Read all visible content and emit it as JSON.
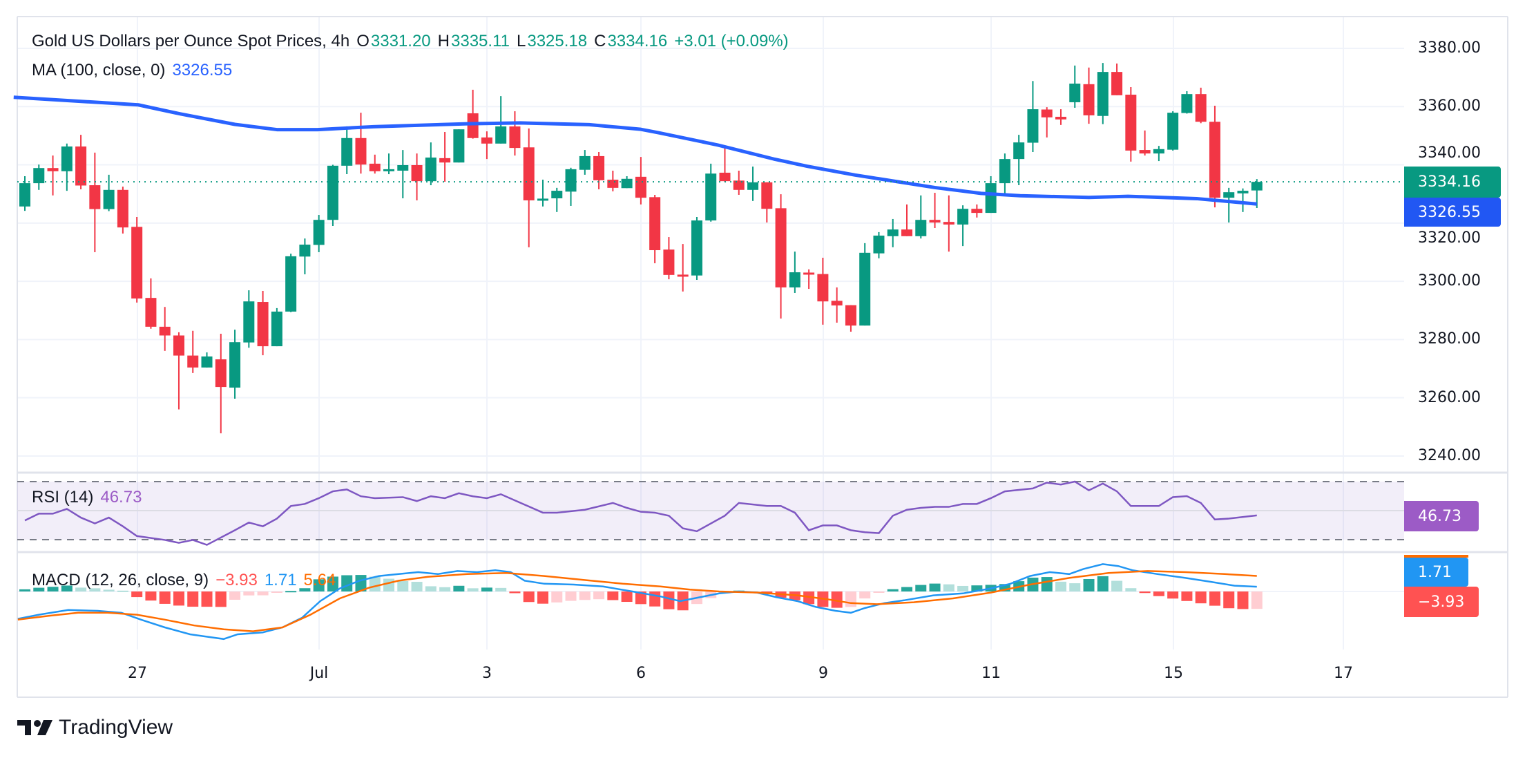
{
  "legend": {
    "title": "Gold US Dollars per Ounce Spot Prices, 4h",
    "o_label": "O",
    "o_value": "3331.20",
    "h_label": "H",
    "h_value": "3335.11",
    "l_label": "L",
    "l_value": "3325.18",
    "c_label": "C",
    "c_value": "3334.16",
    "change": "+3.01 (+0.09%)",
    "ma_label": "MA (100, close, 0)",
    "ma_value": "3326.55",
    "rsi_label": "RSI (14)",
    "rsi_value": "46.73",
    "macd_label": "MACD (12, 26, close, 9)",
    "macd_hist": "−3.93",
    "macd_value": "1.71",
    "macd_signal": "5.64"
  },
  "price_axis": {
    "ticks": [
      "3380.00",
      "3360.00",
      "3340.00",
      "3320.00",
      "3300.00",
      "3280.00",
      "3260.00",
      "3240.00"
    ],
    "last_price_label": "3334.16",
    "ma_price_label": "3326.55",
    "rsi_label": "46.73",
    "macd_label": "1.71",
    "hist_label": "−3.93"
  },
  "time_axis": [
    "27",
    "Jul",
    "3",
    "6",
    "9",
    "11",
    "15",
    "17"
  ],
  "branding": {
    "name": "TradingView"
  },
  "colors": {
    "up": "#089981",
    "down": "#F23645",
    "ma": "#2962FF",
    "rsi": "#7E57C2",
    "macd": "#2196F3",
    "signal": "#FF6D00"
  },
  "chart_data": {
    "type": "candlestick",
    "title": "Gold US Dollars per Ounce Spot Prices, 4h",
    "ylim": [
      3240,
      3380
    ],
    "y_ticks": [
      3380,
      3360,
      3340,
      3320,
      3300,
      3280,
      3260,
      3240
    ],
    "grid": true,
    "last_price": 3334.16,
    "ohlc": [
      [
        3325.7,
        3336.1,
        3324.2,
        3333.7
      ],
      [
        3333.7,
        3340.1,
        3331.4,
        3338.9
      ],
      [
        3338.9,
        3343.2,
        3329.5,
        3337.8
      ],
      [
        3337.8,
        3347.3,
        3331.1,
        3346.3
      ],
      [
        3346.3,
        3350.3,
        3331.6,
        3332.9
      ],
      [
        3333.0,
        3344.2,
        3310.0,
        3324.8
      ],
      [
        3324.8,
        3336.6,
        3324.1,
        3331.4
      ],
      [
        3331.4,
        3332.5,
        3316.4,
        3318.5
      ],
      [
        3318.7,
        3322.1,
        3292.7,
        3294.1
      ],
      [
        3294.3,
        3301.0,
        3283.7,
        3284.4
      ],
      [
        3284.4,
        3291.2,
        3276.1,
        3281.4
      ],
      [
        3281.4,
        3282.5,
        3256.0,
        3274.5
      ],
      [
        3274.5,
        3283.0,
        3268.5,
        3270.4
      ],
      [
        3270.4,
        3275.6,
        3270.4,
        3274.2
      ],
      [
        3273.2,
        3282.0,
        3247.8,
        3263.7
      ],
      [
        3263.5,
        3283.4,
        3259.7,
        3279.1
      ],
      [
        3279.0,
        3296.9,
        3277.2,
        3293.1
      ],
      [
        3292.9,
        3296.7,
        3274.6,
        3277.7
      ],
      [
        3277.7,
        3290.8,
        3277.7,
        3289.6
      ],
      [
        3289.6,
        3309.5,
        3289.4,
        3308.6
      ],
      [
        3308.5,
        3314.7,
        3302.4,
        3312.6
      ],
      [
        3312.5,
        3322.8,
        3310.0,
        3321.1
      ],
      [
        3321.1,
        3340.0,
        3319.0,
        3339.7
      ],
      [
        3339.7,
        3353.2,
        3336.8,
        3349.2
      ],
      [
        3349.2,
        3357.9,
        3337.0,
        3340.1
      ],
      [
        3340.4,
        3343.5,
        3337.0,
        3337.8
      ],
      [
        3338.0,
        3343.9,
        3336.8,
        3338.5
      ],
      [
        3338.0,
        3345.1,
        3328.5,
        3339.9
      ],
      [
        3339.9,
        3343.9,
        3327.8,
        3334.4
      ],
      [
        3334.4,
        3347.7,
        3333.0,
        3342.5
      ],
      [
        3342.3,
        3351.3,
        3334.2,
        3340.8
      ],
      [
        3340.8,
        3352.2,
        3340.8,
        3352.2
      ],
      [
        3357.7,
        3365.8,
        3349.0,
        3349.2
      ],
      [
        3349.4,
        3351.5,
        3342.0,
        3347.3
      ],
      [
        3347.3,
        3363.6,
        3347.3,
        3353.2
      ],
      [
        3353.2,
        3358.4,
        3343.2,
        3345.8
      ],
      [
        3346.0,
        3352.5,
        3311.7,
        3327.8
      ],
      [
        3327.8,
        3334.9,
        3325.7,
        3328.4
      ],
      [
        3328.5,
        3332.1,
        3323.8,
        3331.1
      ],
      [
        3330.8,
        3339.0,
        3325.9,
        3338.5
      ],
      [
        3338.3,
        3345.1,
        3336.6,
        3343.0
      ],
      [
        3343.0,
        3344.4,
        3331.6,
        3334.7
      ],
      [
        3334.9,
        3338.0,
        3330.9,
        3332.1
      ],
      [
        3332.0,
        3336.1,
        3332.0,
        3335.2
      ],
      [
        3335.9,
        3342.7,
        3326.4,
        3328.7
      ],
      [
        3328.9,
        3329.7,
        3306.2,
        3310.7
      ],
      [
        3310.9,
        3315.2,
        3300.7,
        3302.2
      ],
      [
        3302.3,
        3312.8,
        3296.5,
        3301.8
      ],
      [
        3302.0,
        3322.1,
        3300.5,
        3320.9
      ],
      [
        3320.9,
        3340.4,
        3320.5,
        3337.0
      ],
      [
        3337.3,
        3345.8,
        3334.2,
        3334.4
      ],
      [
        3334.6,
        3338.0,
        3329.7,
        3331.4
      ],
      [
        3331.4,
        3339.4,
        3327.6,
        3334.0
      ],
      [
        3334.0,
        3334.0,
        3320.2,
        3324.9
      ],
      [
        3325.1,
        3329.9,
        3287.2,
        3297.9
      ],
      [
        3297.9,
        3310.2,
        3296.0,
        3303.1
      ],
      [
        3303.0,
        3304.1,
        3297.4,
        3302.3
      ],
      [
        3302.5,
        3308.1,
        3285.1,
        3293.1
      ],
      [
        3293.3,
        3297.9,
        3285.8,
        3291.7
      ],
      [
        3291.8,
        3291.8,
        3282.7,
        3284.8
      ],
      [
        3284.8,
        3313.1,
        3284.8,
        3309.8
      ],
      [
        3309.6,
        3316.9,
        3307.9,
        3315.7
      ],
      [
        3315.5,
        3321.4,
        3311.7,
        3317.8
      ],
      [
        3317.8,
        3326.4,
        3315.5,
        3315.5
      ],
      [
        3315.5,
        3329.5,
        3314.7,
        3321.1
      ],
      [
        3321.1,
        3330.4,
        3318.3,
        3320.2
      ],
      [
        3320.4,
        3329.5,
        3310.2,
        3319.5
      ],
      [
        3319.5,
        3326.1,
        3312.1,
        3324.9
      ],
      [
        3324.9,
        3326.4,
        3321.9,
        3323.5
      ],
      [
        3323.5,
        3336.1,
        3323.5,
        3333.7
      ],
      [
        3333.7,
        3343.9,
        3329.9,
        3342.0
      ],
      [
        3342.0,
        3350.3,
        3333.0,
        3347.7
      ],
      [
        3347.6,
        3368.8,
        3344.4,
        3359.1
      ],
      [
        3359.0,
        3359.8,
        3349.4,
        3356.3
      ],
      [
        3356.5,
        3359.1,
        3353.7,
        3355.6
      ],
      [
        3361.5,
        3374.1,
        3359.6,
        3367.9
      ],
      [
        3367.7,
        3373.4,
        3354.1,
        3357.0
      ],
      [
        3356.8,
        3375.0,
        3354.0,
        3371.9
      ],
      [
        3371.9,
        3374.8,
        3363.9,
        3363.9
      ],
      [
        3364.1,
        3366.7,
        3341.1,
        3344.9
      ],
      [
        3345.1,
        3351.8,
        3343.2,
        3343.9
      ],
      [
        3343.9,
        3346.5,
        3341.3,
        3345.4
      ],
      [
        3345.2,
        3358.4,
        3344.9,
        3357.9
      ],
      [
        3357.8,
        3365.3,
        3357.6,
        3364.3
      ],
      [
        3364.3,
        3366.5,
        3354.3,
        3354.8
      ],
      [
        3354.8,
        3360.3,
        3325.4,
        3328.7
      ],
      [
        3328.7,
        3332.1,
        3320.2,
        3330.6
      ],
      [
        3330.2,
        3331.9,
        3323.8,
        3331.1
      ],
      [
        3331.2,
        3335.11,
        3325.18,
        3334.16
      ]
    ],
    "ma100": [
      [
        -0.8,
        3363.2
      ],
      [
        8.1,
        3360.6
      ],
      [
        11.1,
        3357.5
      ],
      [
        15,
        3353.9
      ],
      [
        18,
        3352.1
      ],
      [
        20.9,
        3352.1
      ],
      [
        24.9,
        3353.1
      ],
      [
        31.6,
        3354.1
      ],
      [
        35.4,
        3354.4
      ],
      [
        40.3,
        3353.8
      ],
      [
        44,
        3352.2
      ],
      [
        45.2,
        3351.1
      ],
      [
        49.5,
        3346.8
      ],
      [
        53.5,
        3342
      ],
      [
        55.9,
        3339.5
      ],
      [
        59.3,
        3336.5
      ],
      [
        65,
        3332.2
      ],
      [
        68.3,
        3330.2
      ],
      [
        71.1,
        3329.4
      ],
      [
        76,
        3328.8
      ],
      [
        78.8,
        3329.2
      ],
      [
        83.7,
        3328.4
      ],
      [
        88,
        3326.55
      ]
    ],
    "x_tick_candle_index": {
      "27": 8,
      "Jul": 21,
      "3": 33,
      "6": 44,
      "9": 57,
      "11": 69,
      "15": 82,
      "17": 94
    },
    "rsi": {
      "period": 14,
      "levels": [
        70,
        50,
        30
      ],
      "last": 46.73,
      "points": [
        [
          0,
          43.2
        ],
        [
          1,
          47.9
        ],
        [
          2,
          47.9
        ],
        [
          3,
          51.2
        ],
        [
          4,
          45.2
        ],
        [
          5,
          41.2
        ],
        [
          6,
          45.2
        ],
        [
          7,
          39.2
        ],
        [
          8,
          32.5
        ],
        [
          10,
          29.8
        ],
        [
          11,
          27.8
        ],
        [
          12,
          29.8
        ],
        [
          13,
          26.4
        ],
        [
          15,
          36.5
        ],
        [
          16,
          41.8
        ],
        [
          17,
          39.2
        ],
        [
          18,
          44.5
        ],
        [
          19,
          53.2
        ],
        [
          20,
          54.6
        ],
        [
          21,
          58.6
        ],
        [
          22,
          63.3
        ],
        [
          23,
          64.6
        ],
        [
          24,
          59.9
        ],
        [
          25,
          58.6
        ],
        [
          27,
          59.3
        ],
        [
          28,
          56.6
        ],
        [
          29,
          59.9
        ],
        [
          30,
          58.6
        ],
        [
          31,
          62
        ],
        [
          32,
          59.9
        ],
        [
          33,
          58.6
        ],
        [
          34,
          61.3
        ],
        [
          37,
          48.6
        ],
        [
          38,
          48.6
        ],
        [
          40,
          50.6
        ],
        [
          42,
          55.3
        ],
        [
          43,
          51.9
        ],
        [
          44,
          49.2
        ],
        [
          45,
          48.6
        ],
        [
          46,
          46.5
        ],
        [
          47,
          37.8
        ],
        [
          48,
          35.8
        ],
        [
          50,
          46.5
        ],
        [
          51,
          55.3
        ],
        [
          53,
          53.2
        ],
        [
          54,
          53.2
        ],
        [
          55,
          48.6
        ],
        [
          56,
          36.5
        ],
        [
          57,
          39.8
        ],
        [
          58,
          39.8
        ],
        [
          59,
          36.5
        ],
        [
          60,
          35.1
        ],
        [
          61,
          34.5
        ],
        [
          62,
          46.5
        ],
        [
          63,
          50.6
        ],
        [
          64,
          51.9
        ],
        [
          65,
          52.6
        ],
        [
          66,
          52.6
        ],
        [
          67,
          54.6
        ],
        [
          68,
          54.6
        ],
        [
          69,
          58.6
        ],
        [
          70,
          63.3
        ],
        [
          72,
          65.3
        ],
        [
          73,
          69.3
        ],
        [
          74,
          68
        ],
        [
          75,
          70
        ],
        [
          76,
          64
        ],
        [
          77,
          68.7
        ],
        [
          78,
          63.3
        ],
        [
          79,
          53.2
        ],
        [
          81,
          53.2
        ],
        [
          82,
          59.3
        ],
        [
          83,
          60
        ],
        [
          84,
          55.3
        ],
        [
          85,
          43.9
        ],
        [
          86,
          44.5
        ],
        [
          88,
          46.73
        ]
      ]
    },
    "macd": {
      "params": [
        12,
        26,
        9
      ],
      "last_macd": 1.71,
      "last_signal": 5.64,
      "last_hist": -3.93,
      "macd_line": [
        [
          -0.5,
          -9.9
        ],
        [
          1,
          -8.4
        ],
        [
          3.1,
          -6.7
        ],
        [
          5.2,
          -7
        ],
        [
          6.9,
          -7.7
        ],
        [
          8.3,
          -10.2
        ],
        [
          10,
          -13
        ],
        [
          11.8,
          -15.5
        ],
        [
          13.2,
          -16.5
        ],
        [
          14.2,
          -17.2
        ],
        [
          15.2,
          -15.5
        ],
        [
          17,
          -14.8
        ],
        [
          18.4,
          -13
        ],
        [
          19.8,
          -9.5
        ],
        [
          21.1,
          -3.5
        ],
        [
          22.5,
          1.1
        ],
        [
          23.9,
          3.9
        ],
        [
          25.3,
          5.6
        ],
        [
          26.7,
          6.3
        ],
        [
          28.1,
          7
        ],
        [
          29.5,
          6.3
        ],
        [
          30.9,
          7.4
        ],
        [
          32.3,
          7
        ],
        [
          33.6,
          7.7
        ],
        [
          34.7,
          7
        ],
        [
          35.7,
          3.9
        ],
        [
          37.1,
          2.8
        ],
        [
          39.2,
          2.5
        ],
        [
          41.3,
          1.8
        ],
        [
          43.4,
          0
        ],
        [
          45.4,
          -1.8
        ],
        [
          46.8,
          -3.5
        ],
        [
          48.2,
          -2.1
        ],
        [
          49.6,
          -0.7
        ],
        [
          51,
          0
        ],
        [
          52.3,
          -0.4
        ],
        [
          53.7,
          -2.1
        ],
        [
          55.2,
          -3.5
        ],
        [
          56.5,
          -5.6
        ],
        [
          57.9,
          -7
        ],
        [
          59,
          -7.7
        ],
        [
          60,
          -6
        ],
        [
          61.4,
          -4.2
        ],
        [
          62.8,
          -3.2
        ],
        [
          64.9,
          -1.4
        ],
        [
          67,
          -0.7
        ],
        [
          69,
          1.1
        ],
        [
          70.4,
          2.8
        ],
        [
          71.8,
          5.6
        ],
        [
          73.2,
          7
        ],
        [
          74.6,
          6.3
        ],
        [
          75.6,
          8.1
        ],
        [
          77,
          9.9
        ],
        [
          78.1,
          9.2
        ],
        [
          79.1,
          7.7
        ],
        [
          80.9,
          6.3
        ],
        [
          82.9,
          4.9
        ],
        [
          84.7,
          3.5
        ],
        [
          86.4,
          2.1
        ],
        [
          88,
          1.71
        ]
      ],
      "signal_line": [
        [
          -0.5,
          -10.2
        ],
        [
          1.7,
          -8.8
        ],
        [
          3.8,
          -7.7
        ],
        [
          5.9,
          -7.7
        ],
        [
          8,
          -8.4
        ],
        [
          10,
          -10.2
        ],
        [
          12.1,
          -12.3
        ],
        [
          14.2,
          -13.7
        ],
        [
          16.3,
          -14.4
        ],
        [
          18.4,
          -13
        ],
        [
          20.4,
          -8.4
        ],
        [
          22.5,
          -2.5
        ],
        [
          24.6,
          1.4
        ],
        [
          26.7,
          3.9
        ],
        [
          28.8,
          5.3
        ],
        [
          31.6,
          6.3
        ],
        [
          34.4,
          6.7
        ],
        [
          37.1,
          5.6
        ],
        [
          39.9,
          4.2
        ],
        [
          42.7,
          2.8
        ],
        [
          45.4,
          1.8
        ],
        [
          47.5,
          0.7
        ],
        [
          49.6,
          0
        ],
        [
          52.4,
          -0.4
        ],
        [
          55.2,
          -1.4
        ],
        [
          57.3,
          -2.8
        ],
        [
          59,
          -4.2
        ],
        [
          60.8,
          -4.6
        ],
        [
          63.5,
          -3.9
        ],
        [
          66.3,
          -2.5
        ],
        [
          69,
          -0.4
        ],
        [
          71.8,
          2.5
        ],
        [
          74.6,
          4.9
        ],
        [
          77.4,
          6.7
        ],
        [
          80.2,
          7.4
        ],
        [
          82.9,
          7
        ],
        [
          85.7,
          6.3
        ],
        [
          88,
          5.64
        ]
      ]
    }
  }
}
